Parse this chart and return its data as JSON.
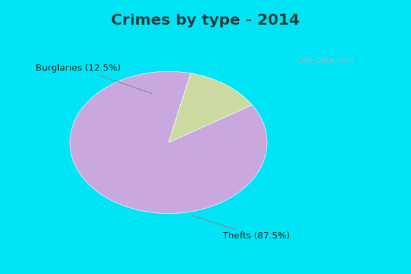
{
  "title": "Crimes by type - 2014",
  "slices": [
    87.5,
    12.5
  ],
  "labels": [
    "Thefts (87.5%)",
    "Burglaries (12.5%)"
  ],
  "colors": [
    "#c8a8df",
    "#ccd9a0"
  ],
  "bg_cyan": "#00e5f5",
  "bg_inner": "#d8f0e0",
  "startangle": 77,
  "title_fontsize": 16,
  "label_fontsize": 9.5,
  "watermark": "City-Data.com",
  "title_color": "#2a3a3a"
}
